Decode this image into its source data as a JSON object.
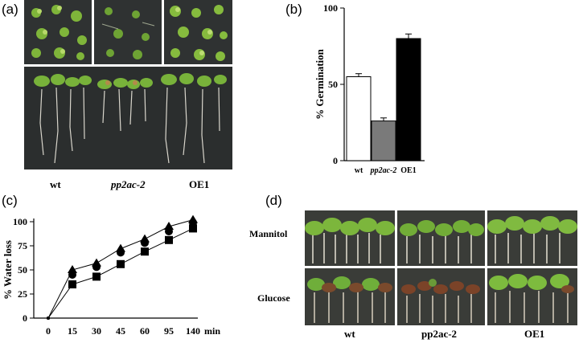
{
  "panel_a": {
    "label": "(a)",
    "genotypes": [
      "wt",
      "pp2ac-2",
      "OE1"
    ]
  },
  "panel_b": {
    "label": "(b)",
    "chart_data": {
      "type": "bar",
      "categories": [
        "wt",
        "pp2ac-2",
        "OE1"
      ],
      "values": [
        55,
        26,
        80
      ],
      "errors": [
        2,
        2,
        3
      ],
      "colors": [
        "#ffffff",
        "#7a7a7a",
        "#000000"
      ],
      "ylabel": "% Germination",
      "ylim": [
        0,
        100
      ],
      "yticks": [
        0,
        50,
        100
      ]
    }
  },
  "panel_c": {
    "label": "(c)",
    "chart_data": {
      "type": "line",
      "x": [
        0,
        15,
        30,
        45,
        60,
        95,
        140
      ],
      "xtick_labels": [
        "0",
        "15",
        "30",
        "45",
        "60",
        "95",
        "140"
      ],
      "xunit": "min",
      "ylabel": "% Water loss",
      "ylim": [
        0,
        100
      ],
      "yticks": [
        0,
        25,
        50,
        75,
        100
      ],
      "series": [
        {
          "marker": "triangle",
          "values": [
            0,
            50,
            57,
            72,
            82,
            95,
            102
          ]
        },
        {
          "marker": "circle",
          "values": [
            0,
            45,
            53,
            68,
            78,
            90,
            99
          ]
        },
        {
          "marker": "square",
          "values": [
            0,
            35,
            43,
            56,
            69,
            81,
            93
          ]
        }
      ]
    }
  },
  "panel_d": {
    "label": "(d)",
    "rows": [
      "Mannitol",
      "Glucose"
    ],
    "genotypes": [
      "wt",
      "pp2ac-2",
      "OE1"
    ]
  }
}
